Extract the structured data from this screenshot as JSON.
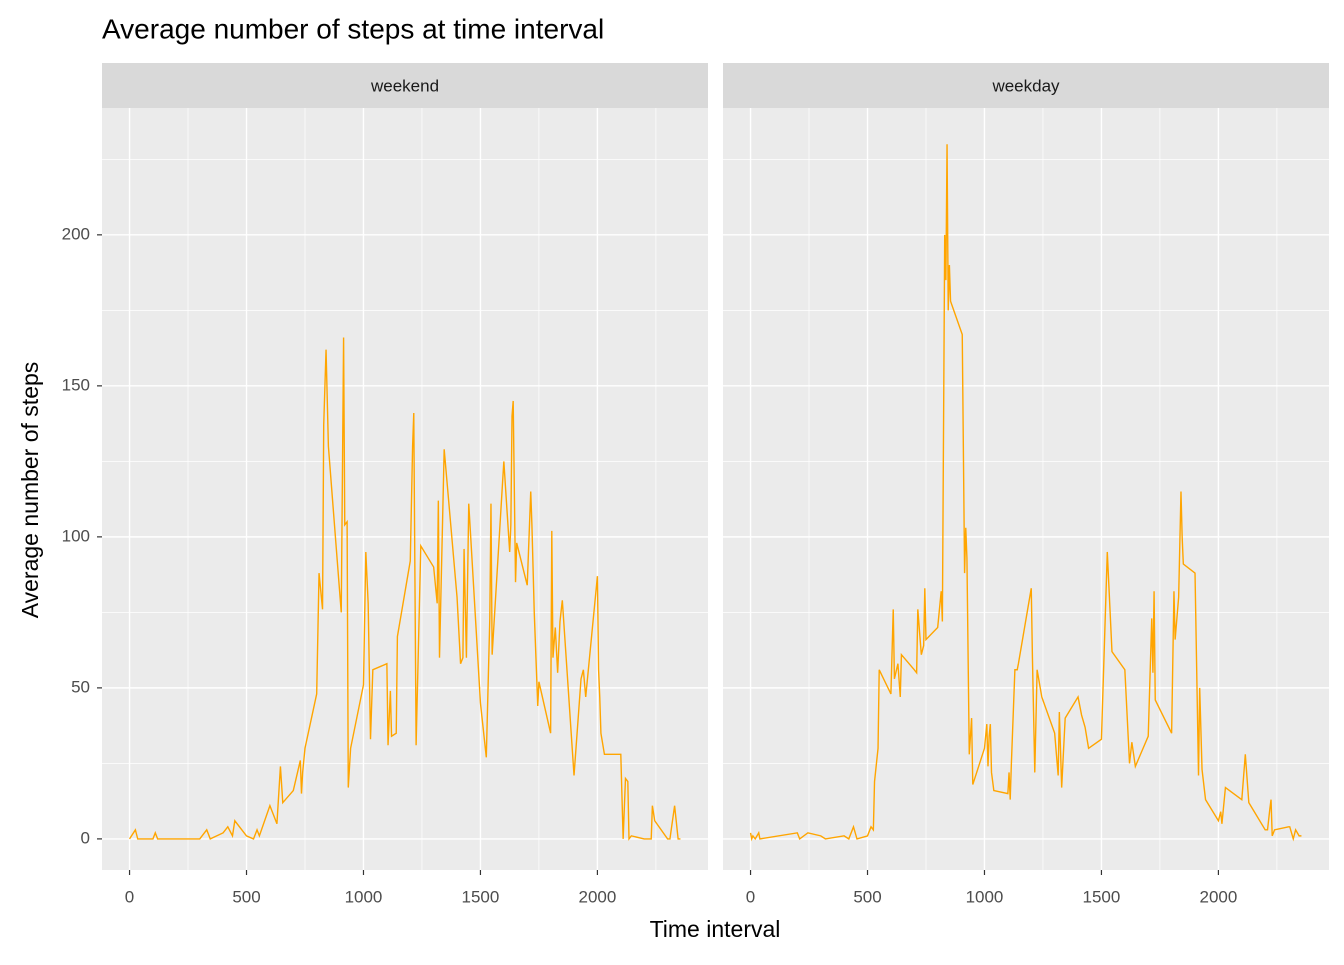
{
  "chart_data": {
    "type": "line",
    "title": "Average number of steps at time interval",
    "x_label": "Time interval",
    "y_label": "Average number of steps",
    "color": "#FFA500",
    "xlim": [
      -117.75,
      2472.75
    ],
    "ylim": [
      -10.3,
      242
    ],
    "xticks": [
      0,
      500,
      1000,
      1500,
      2000
    ],
    "yticks": [
      0,
      50,
      100,
      150,
      200
    ],
    "x_minor_grid": [
      250,
      750,
      1250,
      1750,
      2250
    ],
    "y_minor_grid": [
      25,
      75,
      125,
      175,
      225
    ],
    "grid": true,
    "panels": [
      {
        "name": "weekend",
        "x": [
          0,
          25,
          35,
          100,
          110,
          120,
          300,
          330,
          345,
          400,
          420,
          440,
          450,
          500,
          530,
          545,
          555,
          600,
          630,
          645,
          655,
          700,
          730,
          735,
          740,
          750,
          800,
          810,
          825,
          830,
          840,
          850,
          905,
          915,
          920,
          930,
          935,
          945,
          1000,
          1010,
          1020,
          1030,
          1040,
          1100,
          1105,
          1115,
          1120,
          1140,
          1145,
          1200,
          1210,
          1215,
          1225,
          1245,
          1300,
          1315,
          1320,
          1325,
          1345,
          1400,
          1415,
          1425,
          1430,
          1440,
          1450,
          1500,
          1525,
          1540,
          1545,
          1550,
          1600,
          1625,
          1630,
          1635,
          1640,
          1650,
          1655,
          1700,
          1715,
          1720,
          1730,
          1745,
          1750,
          1800,
          1805,
          1810,
          1820,
          1830,
          1840,
          1850,
          1900,
          1930,
          1940,
          1950,
          2000,
          2005,
          2010,
          2015,
          2030,
          2100,
          2110,
          2120,
          2130,
          2135,
          2145,
          2200,
          2230,
          2235,
          2245,
          2300,
          2310,
          2330,
          2345,
          2355
        ],
        "values": [
          0,
          3,
          0,
          0,
          2,
          0,
          0,
          3,
          0,
          2,
          4,
          1,
          6,
          1,
          0,
          3,
          1,
          11,
          5,
          24,
          12,
          16,
          26,
          15,
          22,
          30,
          48,
          88,
          76,
          137,
          162,
          130,
          75,
          166,
          104,
          105,
          17,
          30,
          51,
          95,
          78,
          33,
          56,
          58,
          31,
          49,
          34,
          35,
          67,
          92,
          130,
          141,
          31,
          97,
          90,
          78,
          112,
          60,
          129,
          80,
          58,
          60,
          96,
          60,
          111,
          45,
          27,
          73,
          111,
          61,
          125,
          95,
          104,
          140,
          145,
          85,
          98,
          84,
          115,
          104,
          75,
          44,
          52,
          35,
          102,
          60,
          70,
          55,
          72,
          79,
          21,
          53,
          56,
          47,
          87,
          56,
          47,
          35,
          28,
          28,
          0,
          20,
          19,
          0,
          1,
          0,
          0,
          11,
          6,
          0,
          0,
          11,
          0,
          0
        ]
      },
      {
        "name": "weekday",
        "x": [
          0,
          5,
          10,
          20,
          35,
          40,
          200,
          210,
          245,
          300,
          320,
          400,
          420,
          440,
          455,
          500,
          515,
          525,
          530,
          545,
          550,
          600,
          610,
          615,
          630,
          640,
          645,
          700,
          710,
          715,
          730,
          740,
          745,
          750,
          800,
          815,
          820,
          830,
          835,
          840,
          845,
          850,
          855,
          905,
          915,
          920,
          925,
          935,
          945,
          950,
          1000,
          1010,
          1015,
          1020,
          1025,
          1030,
          1040,
          1100,
          1105,
          1110,
          1115,
          1130,
          1140,
          1145,
          1200,
          1205,
          1215,
          1225,
          1245,
          1300,
          1315,
          1320,
          1330,
          1345,
          1400,
          1415,
          1430,
          1445,
          1500,
          1525,
          1545,
          1600,
          1620,
          1630,
          1645,
          1700,
          1715,
          1720,
          1725,
          1730,
          1800,
          1810,
          1815,
          1830,
          1840,
          1845,
          1850,
          1900,
          1915,
          1920,
          1930,
          1945,
          2000,
          2010,
          2015,
          2030,
          2100,
          2115,
          2130,
          2200,
          2210,
          2220,
          2225,
          2230,
          2240,
          2300,
          2305,
          2320,
          2330,
          2345,
          2355
        ],
        "values": [
          2,
          0,
          1,
          0,
          2,
          0,
          2,
          0,
          2,
          1,
          0,
          1,
          0,
          4,
          0,
          1,
          4,
          3,
          19,
          30,
          56,
          48,
          76,
          53,
          58,
          47,
          61,
          56,
          55,
          76,
          61,
          64,
          83,
          66,
          70,
          82,
          72,
          200,
          185,
          230,
          175,
          190,
          178,
          167,
          88,
          103,
          93,
          28,
          40,
          18,
          30,
          38,
          24,
          34,
          38,
          22,
          16,
          15,
          22,
          13,
          25,
          56,
          56,
          58,
          83,
          60,
          22,
          56,
          47,
          35,
          21,
          42,
          17,
          40,
          47,
          41,
          37,
          30,
          33,
          95,
          62,
          56,
          25,
          32,
          24,
          34,
          73,
          55,
          82,
          46,
          35,
          82,
          66,
          80,
          115,
          100,
          91,
          88,
          21,
          50,
          23,
          13,
          6,
          9,
          5,
          17,
          13,
          28,
          12,
          3,
          3,
          10,
          13,
          1,
          3,
          4,
          4,
          0,
          3,
          1,
          1
        ]
      }
    ]
  }
}
